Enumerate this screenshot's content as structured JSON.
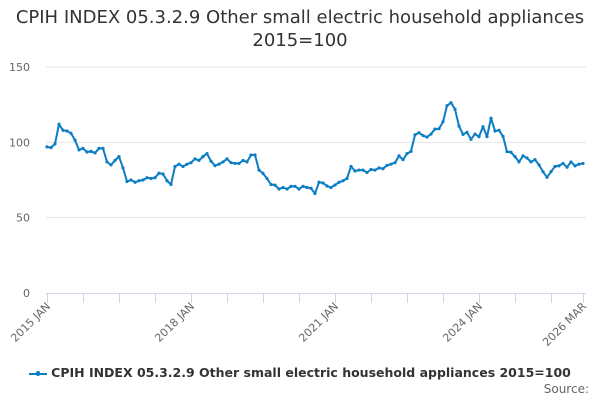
{
  "chart_data": {
    "type": "line",
    "title": "CPIH INDEX 05.3.2.9 Other small electric household appliances 2015=100",
    "xlabel": "",
    "ylabel": "",
    "ylim": [
      0,
      150
    ],
    "yticks": [
      0,
      50,
      100,
      150
    ],
    "x_start": "2015-01",
    "x_end": "2026-03",
    "x_frequency": "monthly",
    "xtick_labels": [
      "2015 JAN",
      "2018 JAN",
      "2021 JAN",
      "2024 JAN",
      "2026 MAR"
    ],
    "grid": "horizontal",
    "legend_placement": "bottom",
    "line_color": "#0b7dc4",
    "series": [
      {
        "name": "CPIH INDEX 05.3.2.9 Other small electric household appliances 2015=100",
        "values": [
          97,
          96.5,
          99,
          112,
          108,
          107.5,
          106,
          101.5,
          95,
          96,
          93.6,
          94,
          93,
          96,
          96,
          87,
          85,
          88,
          90.5,
          83,
          74,
          75,
          73.5,
          74.5,
          75,
          76.5,
          76,
          76.5,
          79.5,
          79,
          74.5,
          72,
          84,
          85.5,
          84,
          85.5,
          86.5,
          89,
          88,
          90.5,
          92.5,
          87.5,
          84.5,
          85.5,
          87,
          89,
          86.5,
          86,
          86,
          88,
          87,
          91.6,
          91.6,
          81.6,
          79.4,
          76,
          72,
          71.6,
          69,
          70,
          69,
          70.8,
          70.8,
          69,
          70.8,
          70,
          69.5,
          66,
          73.5,
          73,
          71,
          70,
          71.7,
          73.5,
          74.5,
          76,
          84,
          81,
          81.6,
          81.6,
          80,
          82,
          81.6,
          83,
          82.5,
          84.7,
          85.5,
          86.5,
          91,
          88.5,
          92.5,
          94,
          105,
          106.4,
          104.5,
          103.5,
          105.5,
          108.8,
          109,
          113.7,
          124.3,
          126.3,
          122,
          110.8,
          105.3,
          106.6,
          102,
          105.5,
          103.8,
          110.4,
          103.8,
          116,
          107.5,
          108,
          104,
          93.8,
          93.4,
          90.5,
          87,
          91,
          89.6,
          87,
          88.5,
          85,
          80.5,
          76.8,
          80.5,
          84,
          84.4,
          86,
          83.5,
          87,
          84.4,
          85.5,
          86
        ]
      }
    ],
    "source_label": "Source:"
  }
}
